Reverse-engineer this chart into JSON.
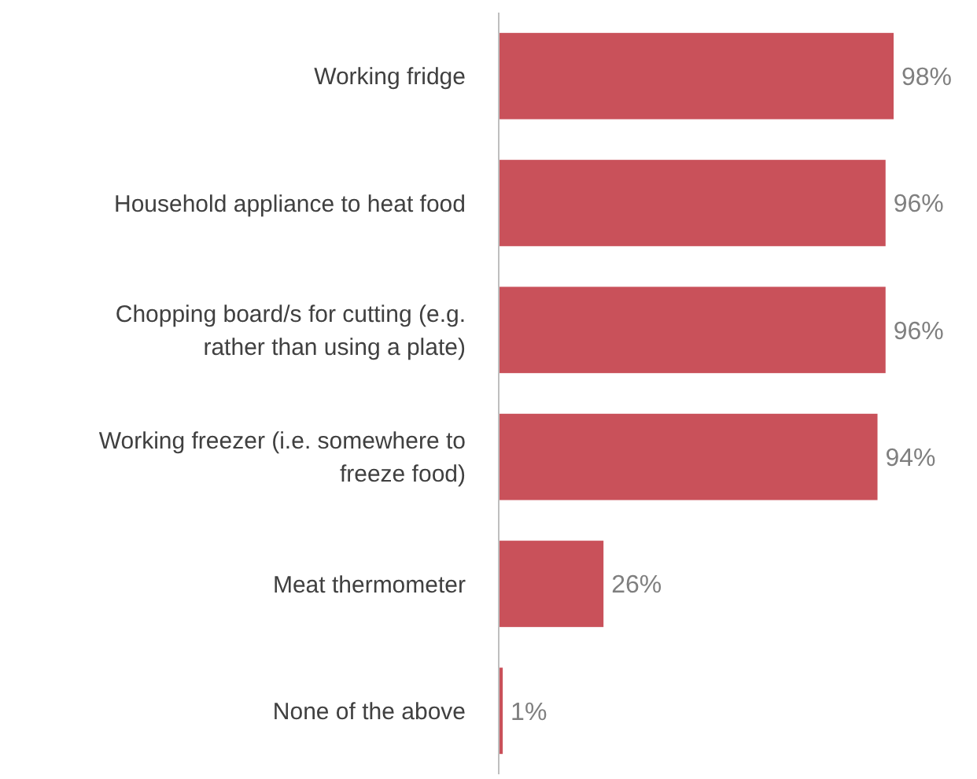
{
  "chart_data": {
    "type": "bar",
    "orientation": "horizontal",
    "categories": [
      "Working fridge",
      "Household appliance to heat food",
      "Chopping board/s for cutting (e.g. rather than using a plate)",
      "Working freezer (i.e. somewhere to freeze food)",
      "Meat thermometer",
      "None of the above"
    ],
    "values": [
      98,
      96,
      96,
      94,
      26,
      1
    ],
    "value_labels": [
      "98%",
      "96%",
      "96%",
      "94%",
      "26%",
      "1%"
    ],
    "color": "#c9515a",
    "tick_labels": "y"
  }
}
